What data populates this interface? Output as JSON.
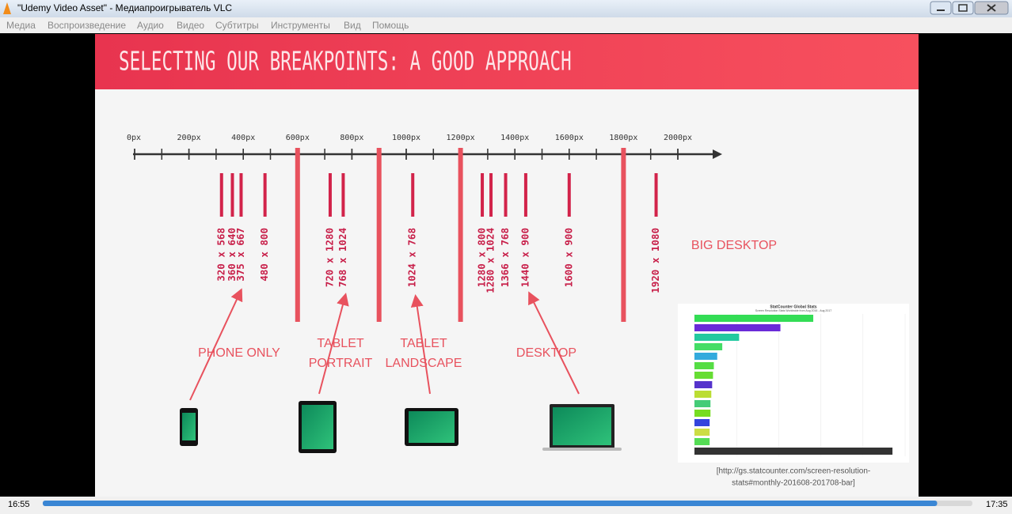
{
  "window": {
    "title": "\"Udemy Video Asset\" - Медиапроигрыватель VLC"
  },
  "menu": [
    "Медиа",
    "Воспроизведение",
    "Аудио",
    "Видео",
    "Субтитры",
    "Инструменты",
    "Вид",
    "Помощь"
  ],
  "slide": {
    "title": "SELECTING OUR BREAKPOINTS: A GOOD APPROACH",
    "axis_ticks": [
      {
        "value": 0,
        "label": "0px"
      },
      {
        "value": 200,
        "label": "200px"
      },
      {
        "value": 400,
        "label": "400px"
      },
      {
        "value": 600,
        "label": "600px"
      },
      {
        "value": 800,
        "label": "800px"
      },
      {
        "value": 1000,
        "label": "1000px"
      },
      {
        "value": 1200,
        "label": "1200px"
      },
      {
        "value": 1400,
        "label": "1400px"
      },
      {
        "value": 1600,
        "label": "1600px"
      },
      {
        "value": 1800,
        "label": "1800px"
      },
      {
        "value": 2000,
        "label": "2000px"
      }
    ],
    "breakpoints": [
      600,
      900,
      1200,
      1800
    ],
    "resolutions": [
      {
        "label": "320 x 568",
        "width": 320
      },
      {
        "label": "360 x 640",
        "width": 360
      },
      {
        "label": "375 x 667",
        "width": 375
      },
      {
        "label": "480 x 800",
        "width": 480
      },
      {
        "label": "720 x 1280",
        "width": 720
      },
      {
        "label": "768 x 1024",
        "width": 768
      },
      {
        "label": "1024 x 768",
        "width": 1024
      },
      {
        "label": "1280 x 800",
        "width": 1280
      },
      {
        "label": "1280 x 1024",
        "width": 1280
      },
      {
        "label": "1366 x 768",
        "width": 1366
      },
      {
        "label": "1440 x 900",
        "width": 1440
      },
      {
        "label": "1600 x 900",
        "width": 1600
      },
      {
        "label": "1920 x 1080",
        "width": 1920
      }
    ],
    "groups": [
      [
        "PHONE ONLY"
      ],
      [
        "TABLET",
        "PORTRAIT"
      ],
      [
        "TABLET",
        "LANDSCAPE"
      ],
      [
        "DESKTOP"
      ],
      [
        "BIG DESKTOP"
      ]
    ],
    "statcounter": {
      "title": "StatCounter Global Stats",
      "subtitle": "Screen Resolution Stats Worldwide from Aug 2016 - Aug 2017",
      "xlim": [
        0,
        25
      ],
      "values": [
        14.1,
        10.2,
        5.3,
        3.3,
        2.7,
        2.3,
        2.2,
        2.1,
        2.0,
        1.9,
        1.9,
        1.8,
        1.8,
        1.8,
        23.5
      ],
      "colors": [
        "#33dd55",
        "#6a2bd8",
        "#22c9a0",
        "#44dd66",
        "#33aadd",
        "#55dd44",
        "#66dd33",
        "#5533cc",
        "#bbdd33",
        "#44cc77",
        "#77dd22",
        "#3344dd",
        "#ccdd44",
        "#55dd55",
        "#333333"
      ],
      "source": [
        "[http://gs.statcounter.com/screen-resolution-",
        "stats#monthly-201608-201708-bar]"
      ]
    }
  },
  "player": {
    "elapsed": "16:55",
    "total": "17:35"
  }
}
